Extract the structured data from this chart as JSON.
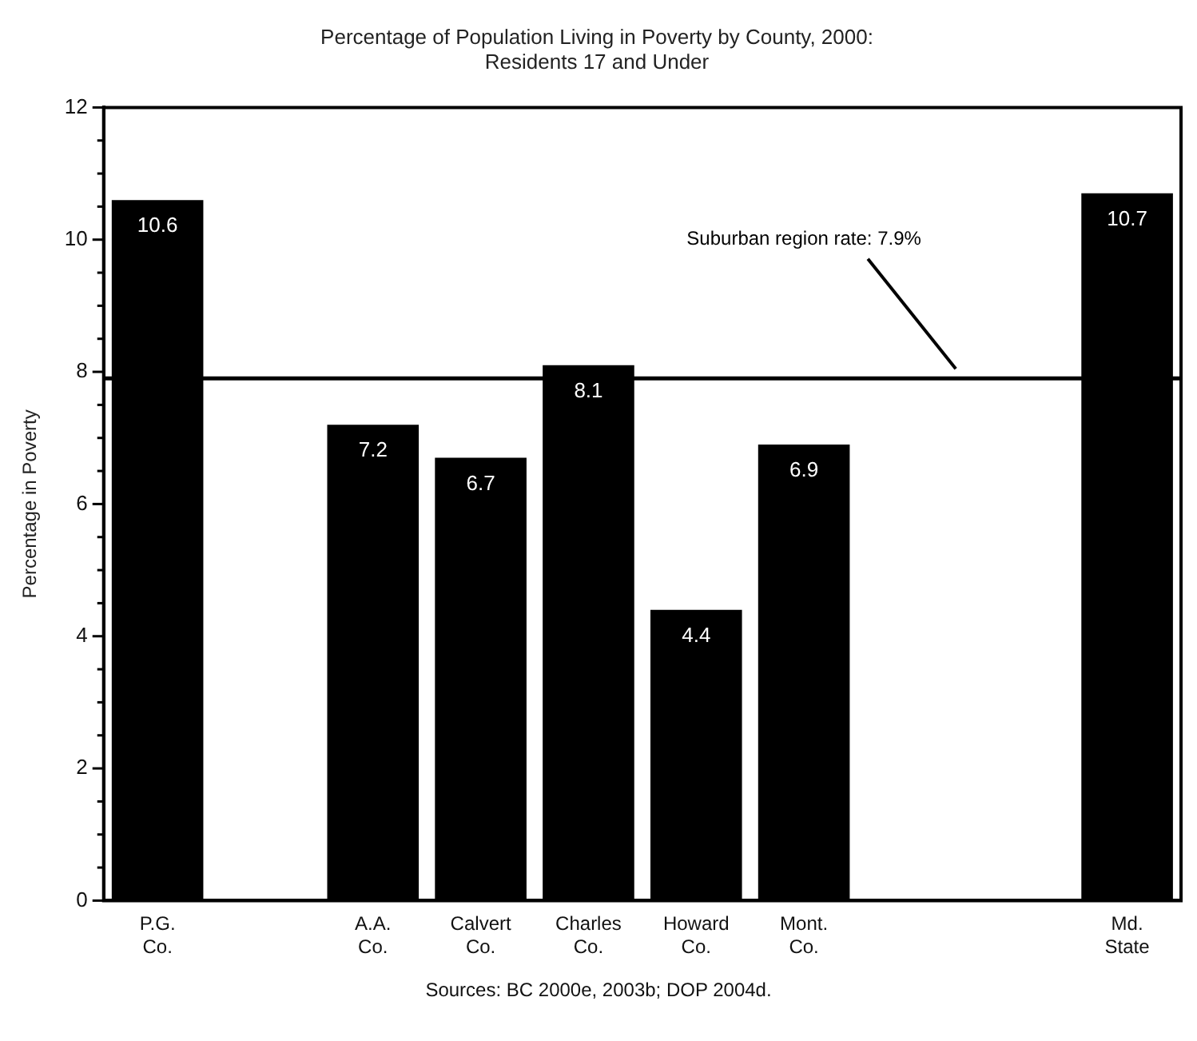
{
  "chart_data": {
    "type": "bar",
    "title": "Percentage of Population Living in Poverty by County, 2000:\nResidents 17 and Under",
    "ylabel": "Percentage in Poverty",
    "categories": [
      "P.G.\nCo.",
      null,
      "A.A.\nCo.",
      "Calvert\nCo.",
      "Charles\nCo.",
      "Howard\nCo.",
      "Mont.\nCo.",
      null,
      null,
      "Md.\nState"
    ],
    "values": [
      10.6,
      null,
      7.2,
      6.7,
      8.1,
      4.4,
      6.9,
      null,
      null,
      10.7
    ],
    "color": "#000000",
    "data_labels": true,
    "grid": false,
    "legend": false,
    "ylim": [
      0,
      12
    ],
    "yticks": [
      0,
      {
        "value": 0.5,
        "label": null
      },
      {
        "value": 1,
        "label": null
      },
      {
        "value": 1.5,
        "label": null
      },
      2,
      {
        "value": 2.5,
        "label": null
      },
      {
        "value": 3,
        "label": null
      },
      {
        "value": 3.5,
        "label": null
      },
      4,
      {
        "value": 4.5,
        "label": null
      },
      {
        "value": 5,
        "label": null
      },
      {
        "value": 5.5,
        "label": null
      },
      6,
      {
        "value": 6.5,
        "label": null
      },
      {
        "value": 7,
        "label": null
      },
      {
        "value": 7.5,
        "label": null
      },
      8,
      {
        "value": 8.5,
        "label": null
      },
      {
        "value": 9,
        "label": null
      },
      {
        "value": 9.5,
        "label": null
      },
      10,
      {
        "value": 10.5,
        "label": null
      },
      {
        "value": 11,
        "label": null
      },
      {
        "value": 11.5,
        "label": null
      },
      12
    ],
    "ref_lines": [
      {
        "axis": "y",
        "value": 7.9,
        "label": "Suburban region rate: 7.9%",
        "color": "#000000"
      }
    ],
    "annotations": [
      "Sources: BC 2000e, 2003b; DOP 2004d."
    ]
  }
}
